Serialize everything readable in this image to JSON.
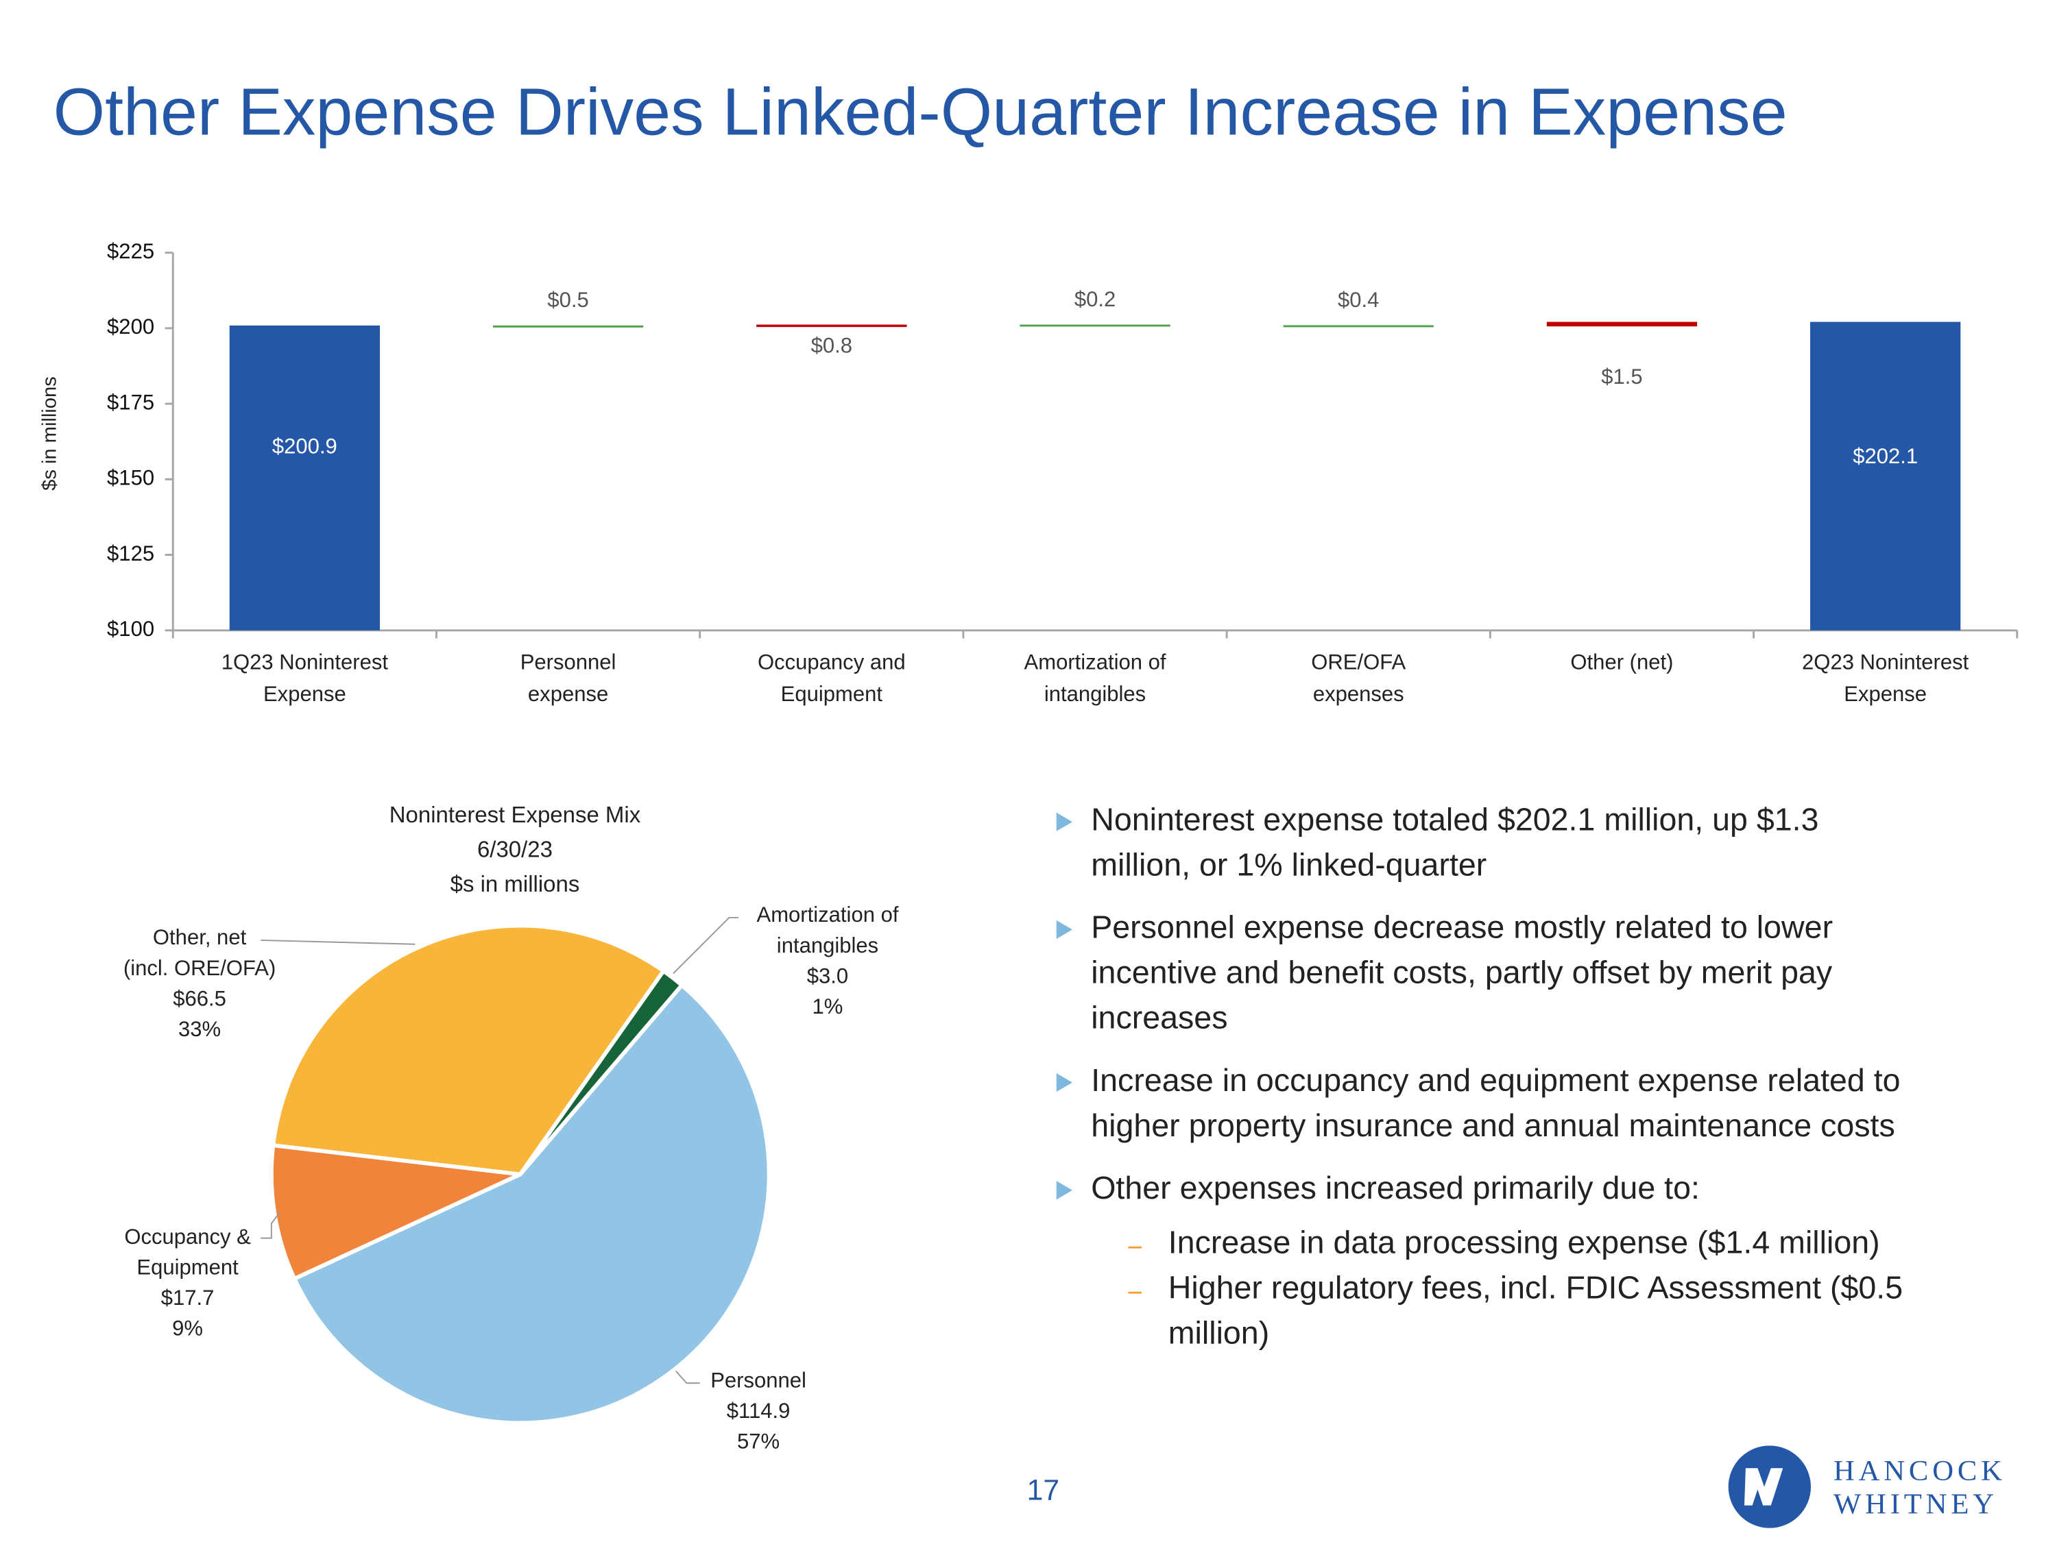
{
  "title": "Other Expense Drives Linked-Quarter Increase in Expense",
  "chart_data": [
    {
      "type": "waterfall",
      "y_label": "$s in millions",
      "categories": [
        [
          "1Q23 Noninterest",
          "Expense"
        ],
        [
          "Personnel",
          "expense"
        ],
        [
          "Occupancy and",
          "Equipment"
        ],
        [
          "Amortization of",
          "intangibles"
        ],
        [
          "ORE/OFA",
          "expenses"
        ],
        [
          "Other (net)"
        ],
        [
          "2Q23 Noninterest",
          "Expense"
        ]
      ],
      "values": [
        200.9,
        -0.5,
        0.8,
        -0.2,
        -0.4,
        1.5,
        202.1
      ],
      "value_labels": [
        "$200.9",
        "$0.5",
        "$0.8",
        "$0.2",
        "$0.4",
        "$1.5",
        "$202.1"
      ],
      "colors": {
        "total": "#2458a6",
        "increase": "#c00000",
        "decrease": "#4ea24e"
      },
      "ylim": [
        100,
        225
      ],
      "yticks": [
        {
          "value": 100,
          "label": "$100"
        },
        {
          "value": 125,
          "label": "$125"
        },
        {
          "value": 150,
          "label": "$150"
        },
        {
          "value": 175,
          "label": "$175"
        },
        {
          "value": 200,
          "label": "$200"
        },
        {
          "value": 225,
          "label": "$225"
        }
      ]
    },
    {
      "type": "pie",
      "title": [
        "Noninterest Expense Mix",
        "6/30/23",
        "$s in millions"
      ],
      "categories": [
        [
          "Personnel"
        ],
        [
          "Occupancy &",
          "Equipment"
        ],
        [
          "Other, net",
          "(incl. ORE/OFA)"
        ],
        [
          "Amortization of",
          "intangibles"
        ]
      ],
      "values": [
        114.9,
        17.7,
        66.5,
        3.0
      ],
      "value_labels": [
        "$114.9",
        "$17.7",
        "$66.5",
        "$3.0"
      ],
      "percents": [
        57,
        9,
        33,
        1
      ],
      "percent_labels": [
        "57%",
        "9%",
        "33%",
        "1%"
      ],
      "colors": [
        "#92c5e5",
        "#f0843a",
        "#f9b53a",
        "#17643a"
      ]
    }
  ],
  "bullets": [
    {
      "lines": [
        "Noninterest expense totaled $202.1 million, up $1.3",
        "million, or 1% linked-quarter"
      ]
    },
    {
      "lines": [
        "Personnel expense decrease mostly related to lower",
        "incentive and benefit costs, partly offset by merit pay",
        "increases"
      ]
    },
    {
      "lines": [
        "Increase in occupancy and equipment expense related to",
        "higher property insurance and annual maintenance costs"
      ]
    },
    {
      "lines": [
        "Other expenses increased primarily due to:"
      ],
      "sub": [
        {
          "lines": [
            "Increase in data processing expense ($1.4 million)"
          ]
        },
        {
          "lines": [
            "Higher regulatory fees, incl. FDIC Assessment ($0.5",
            "million)"
          ]
        }
      ]
    }
  ],
  "page_number": "17",
  "logo": [
    "HANCOCK",
    "WHITNEY"
  ]
}
